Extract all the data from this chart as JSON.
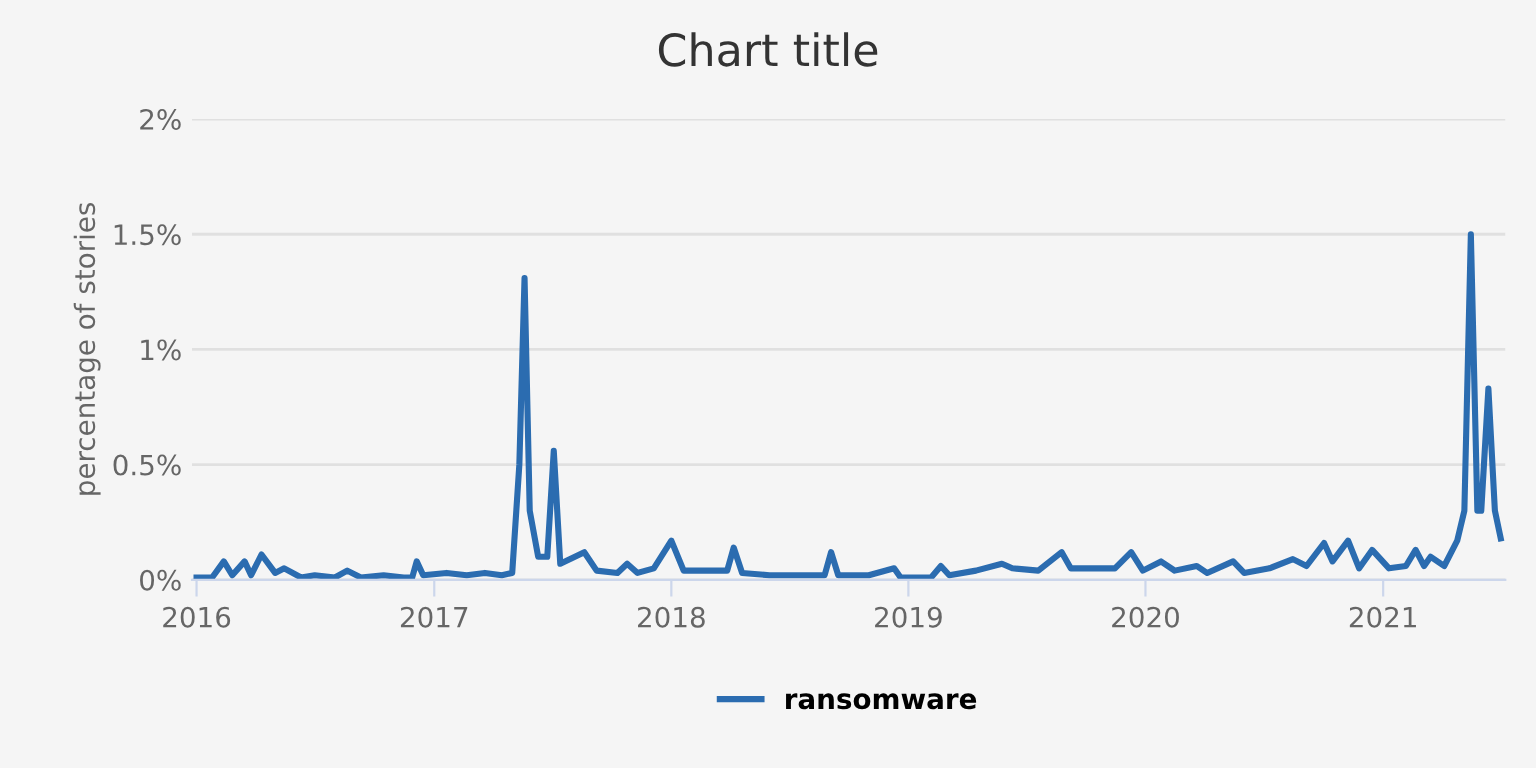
{
  "chart_data": {
    "type": "line",
    "title": "Chart title",
    "ylabel": "percentage of stories",
    "x": [
      "2016-01-01",
      "2016-01-25",
      "2016-02-12",
      "2016-02-25",
      "2016-03-15",
      "2016-03-25",
      "2016-04-10",
      "2016-05-01",
      "2016-05-15",
      "2016-06-10",
      "2016-07-01",
      "2016-08-01",
      "2016-08-20",
      "2016-09-10",
      "2016-10-15",
      "2016-11-15",
      "2016-11-28",
      "2016-12-05",
      "2016-12-15",
      "2017-01-20",
      "2017-02-20",
      "2017-03-20",
      "2017-04-15",
      "2017-05-01",
      "2017-05-12",
      "2017-05-20",
      "2017-05-28",
      "2017-06-10",
      "2017-06-24",
      "2017-07-04",
      "2017-07-14",
      "2017-08-20",
      "2017-09-08",
      "2017-10-10",
      "2017-10-25",
      "2017-11-10",
      "2017-12-05",
      "2018-01-01",
      "2018-01-20",
      "2018-03-01",
      "2018-03-28",
      "2018-04-07",
      "2018-04-20",
      "2018-06-01",
      "2018-07-15",
      "2018-08-25",
      "2018-09-04",
      "2018-09-15",
      "2018-11-01",
      "2018-12-10",
      "2018-12-20",
      "2019-02-05",
      "2019-02-20",
      "2019-03-05",
      "2019-04-15",
      "2019-05-25",
      "2019-06-10",
      "2019-07-20",
      "2019-08-25",
      "2019-09-08",
      "2019-11-15",
      "2019-12-10",
      "2019-12-28",
      "2020-01-25",
      "2020-02-15",
      "2020-03-20",
      "2020-04-05",
      "2020-05-15",
      "2020-06-01",
      "2020-07-10",
      "2020-08-15",
      "2020-09-05",
      "2020-10-02",
      "2020-10-15",
      "2020-11-08",
      "2020-11-25",
      "2020-12-15",
      "2021-01-10",
      "2021-02-05",
      "2021-02-20",
      "2021-03-05",
      "2021-03-15",
      "2021-04-05",
      "2021-04-25",
      "2021-05-06",
      "2021-05-16",
      "2021-05-26",
      "2021-06-01",
      "2021-06-12",
      "2021-06-22",
      "2021-07-01"
    ],
    "series": [
      {
        "name": "ransomware",
        "color": "#2b6cb0",
        "values": [
          0.01,
          0.01,
          0.08,
          0.02,
          0.08,
          0.02,
          0.11,
          0.03,
          0.05,
          0.01,
          0.02,
          0.01,
          0.04,
          0.01,
          0.02,
          0.01,
          0.01,
          0.08,
          0.02,
          0.03,
          0.02,
          0.03,
          0.02,
          0.03,
          0.5,
          1.31,
          0.3,
          0.1,
          0.1,
          0.56,
          0.07,
          0.12,
          0.04,
          0.03,
          0.07,
          0.03,
          0.05,
          0.17,
          0.04,
          0.04,
          0.04,
          0.14,
          0.03,
          0.02,
          0.02,
          0.02,
          0.12,
          0.02,
          0.02,
          0.05,
          0.01,
          0.01,
          0.06,
          0.02,
          0.04,
          0.07,
          0.05,
          0.04,
          0.12,
          0.05,
          0.05,
          0.12,
          0.04,
          0.08,
          0.04,
          0.06,
          0.03,
          0.08,
          0.03,
          0.05,
          0.09,
          0.06,
          0.16,
          0.08,
          0.17,
          0.05,
          0.13,
          0.05,
          0.06,
          0.13,
          0.06,
          0.1,
          0.06,
          0.17,
          0.3,
          1.5,
          0.3,
          0.3,
          0.83,
          0.3,
          0.18
        ]
      }
    ],
    "xlim": [
      "2015-12-25",
      "2021-07-08"
    ],
    "xticks": [
      {
        "value": "2016-01-01",
        "label": "2016"
      },
      {
        "value": "2017-01-01",
        "label": "2017"
      },
      {
        "value": "2018-01-01",
        "label": "2018"
      },
      {
        "value": "2019-01-01",
        "label": "2019"
      },
      {
        "value": "2020-01-01",
        "label": "2020"
      },
      {
        "value": "2021-01-01",
        "label": "2021"
      }
    ],
    "ylim": [
      0,
      2
    ],
    "yticks": [
      {
        "value": 0,
        "label": "0%"
      },
      {
        "value": 0.5,
        "label": "0.5%"
      },
      {
        "value": 1,
        "label": "1%"
      },
      {
        "value": 1.5,
        "label": "1.5%"
      },
      {
        "value": 2,
        "label": "2%"
      }
    ],
    "grid": "y",
    "legend": "bottom",
    "marker": "none",
    "line_style": "solid"
  }
}
